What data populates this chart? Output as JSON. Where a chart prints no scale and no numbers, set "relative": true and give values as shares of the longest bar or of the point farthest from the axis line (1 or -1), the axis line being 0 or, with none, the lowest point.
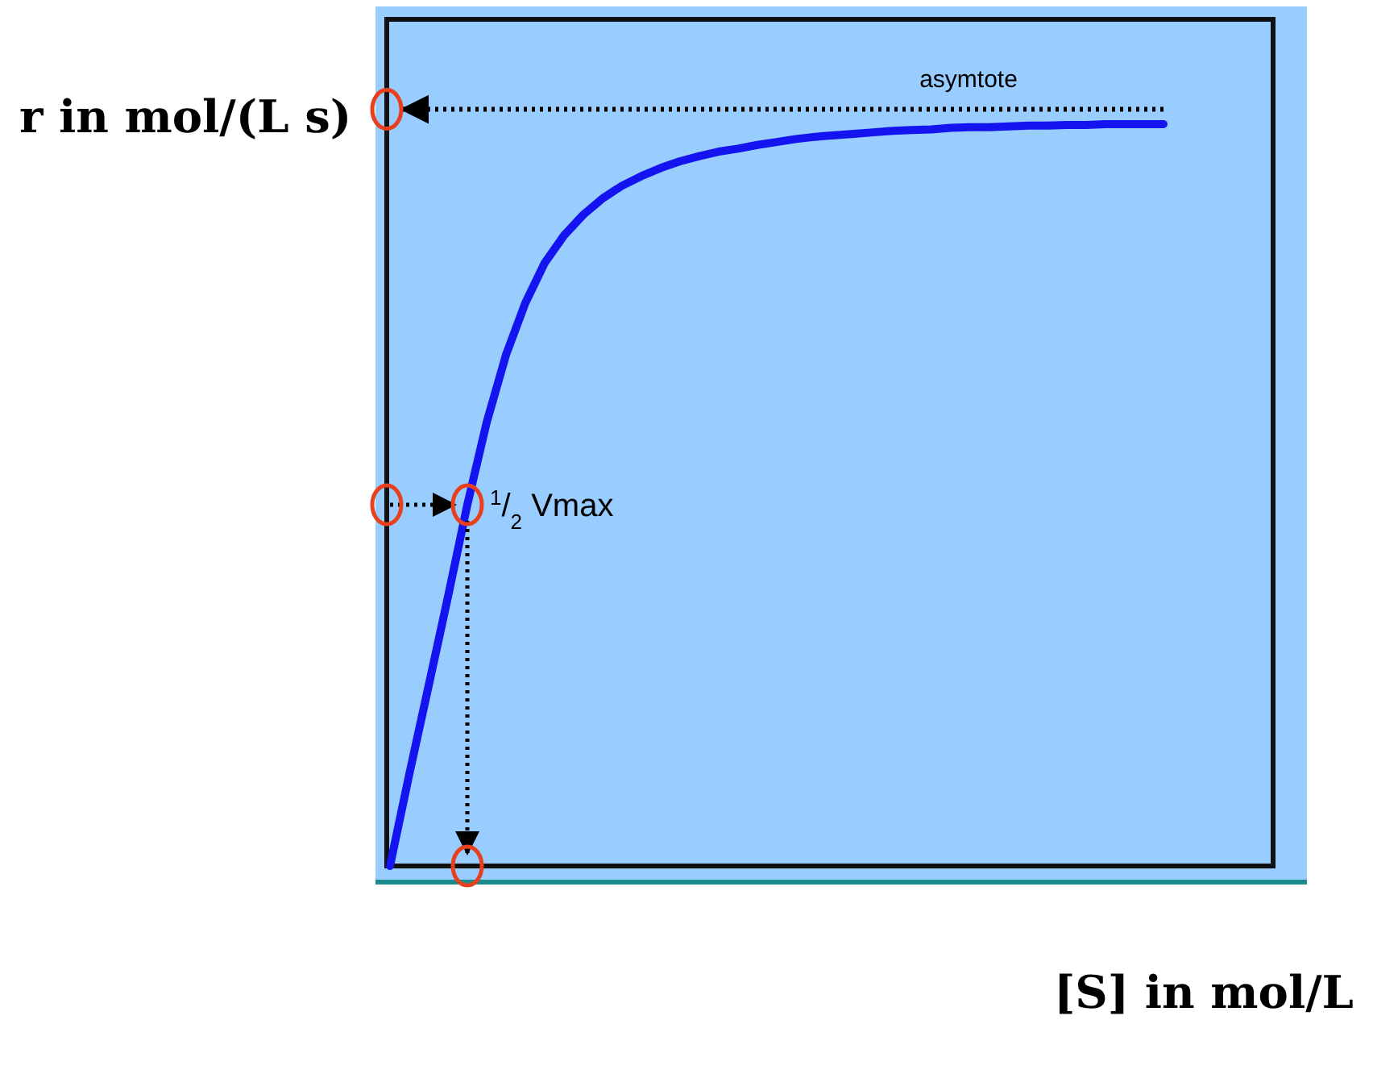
{
  "chart_data": {
    "type": "line",
    "relative": true,
    "xlabel": "[S] in mol/L",
    "ylabel": "r in mol/(L s)",
    "categories": [
      null,
      null,
      null,
      null,
      null,
      null,
      null,
      null,
      null,
      null,
      null,
      null,
      null,
      null,
      null,
      null,
      null,
      null,
      null,
      null,
      null,
      null,
      null,
      null,
      null,
      null,
      null,
      null,
      null,
      null,
      null,
      null,
      null,
      null,
      null,
      null,
      null,
      null,
      null,
      null,
      null,
      null,
      null,
      null,
      null,
      null
    ],
    "series": [
      {
        "color": "#1414f0",
        "values": [
          0,
          0.124,
          0.243,
          0.363,
          0.487,
          0.598,
          0.689,
          0.759,
          0.813,
          0.85,
          0.878,
          0.9,
          0.917,
          0.93,
          0.941,
          0.95,
          0.957,
          0.963,
          0.967,
          0.972,
          0.976,
          0.98,
          0.983,
          0.985,
          0.987,
          0.989,
          0.991,
          0.992,
          0.993,
          0.995,
          0.996,
          0.996,
          0.997,
          0.998,
          0.998,
          0.999,
          0.999,
          1,
          1,
          1,
          1,
          null,
          null,
          null,
          null,
          null
        ]
      }
    ],
    "ref_lines": [
      {
        "axis": "y",
        "value": 1.02,
        "label": "asymtote",
        "color": "#000000",
        "line_style": "dotted"
      },
      {
        "axis": "y",
        "value": 0.487,
        "label": "$^{1}$/$_{2}$ Vmax",
        "color": "#000000",
        "line_style": "dotted"
      }
    ],
    "marker": "none",
    "line_style": "solid"
  }
}
